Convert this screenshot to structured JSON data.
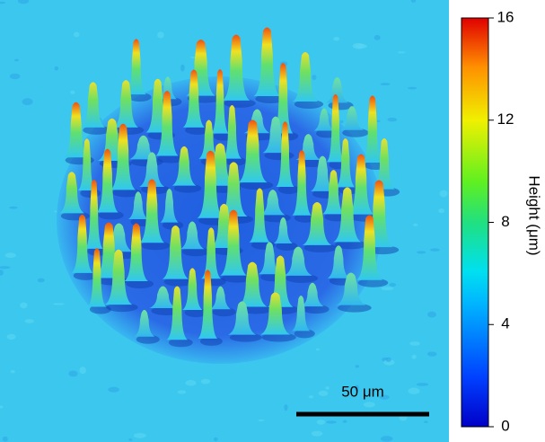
{
  "chart_data": {
    "type": "surface",
    "colorbar": {
      "label": "Height (μm)",
      "lim": [
        0,
        16
      ],
      "ticks": [
        0,
        4,
        8,
        12,
        16
      ]
    },
    "scale_bar": {
      "label": "50 μm"
    }
  }
}
